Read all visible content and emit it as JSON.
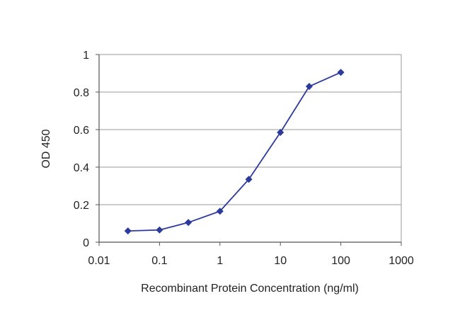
{
  "chart_data": {
    "type": "line",
    "title": "",
    "xlabel": "Recombinant Protein Concentration (ng/ml)",
    "ylabel": "OD 450",
    "xscale": "log",
    "xlim": [
      0.01,
      1000
    ],
    "ylim": [
      0,
      1
    ],
    "x_ticks": [
      0.01,
      0.1,
      1,
      10,
      100,
      1000
    ],
    "x_tick_labels": [
      "0.01",
      "0.1",
      "1",
      "10",
      "100",
      "1000"
    ],
    "y_ticks": [
      0,
      0.2,
      0.4,
      0.6,
      0.8,
      1
    ],
    "y_tick_labels": [
      "0",
      "0.2",
      "0.4",
      "0.6",
      "0.8",
      "1"
    ],
    "grid": "horizontal",
    "legend": "none",
    "series": [
      {
        "x": [
          0.03,
          0.1,
          0.3,
          1,
          3,
          10,
          30,
          100
        ],
        "y": [
          0.06,
          0.065,
          0.105,
          0.165,
          0.335,
          0.585,
          0.83,
          0.905
        ],
        "color": "#2b3a9c",
        "marker": "diamond"
      }
    ],
    "colors": {
      "plot_background": "#ffffff",
      "gridline": "#9a9a9a",
      "axis": "#555555",
      "series": "#2b3a9c"
    }
  }
}
